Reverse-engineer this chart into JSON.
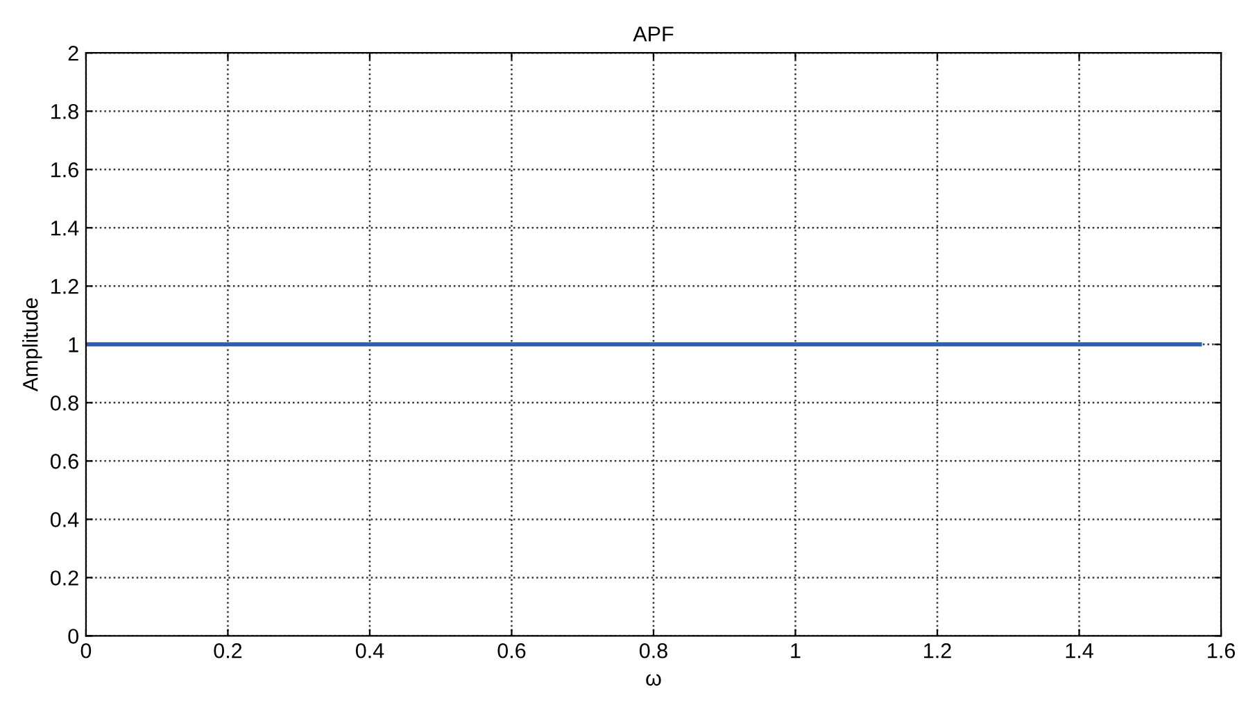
{
  "chart_data": {
    "type": "line",
    "title": "APF",
    "xlabel": "ω",
    "ylabel": "Amplitude",
    "x": [
      0,
      1.57
    ],
    "series": [
      {
        "color": "#2f5fa8",
        "values": [
          1,
          1
        ]
      }
    ],
    "xlim": [
      0,
      1.6
    ],
    "xticks": [
      0,
      0.2,
      0.4,
      0.6,
      0.8,
      1,
      1.2,
      1.4,
      1.6
    ],
    "ylim": [
      0,
      2
    ],
    "yticks": [
      0,
      0.2,
      0.4,
      0.6,
      0.8,
      1,
      1.2,
      1.4,
      1.6,
      1.8,
      2
    ],
    "grid": true,
    "line_style": "solid"
  }
}
